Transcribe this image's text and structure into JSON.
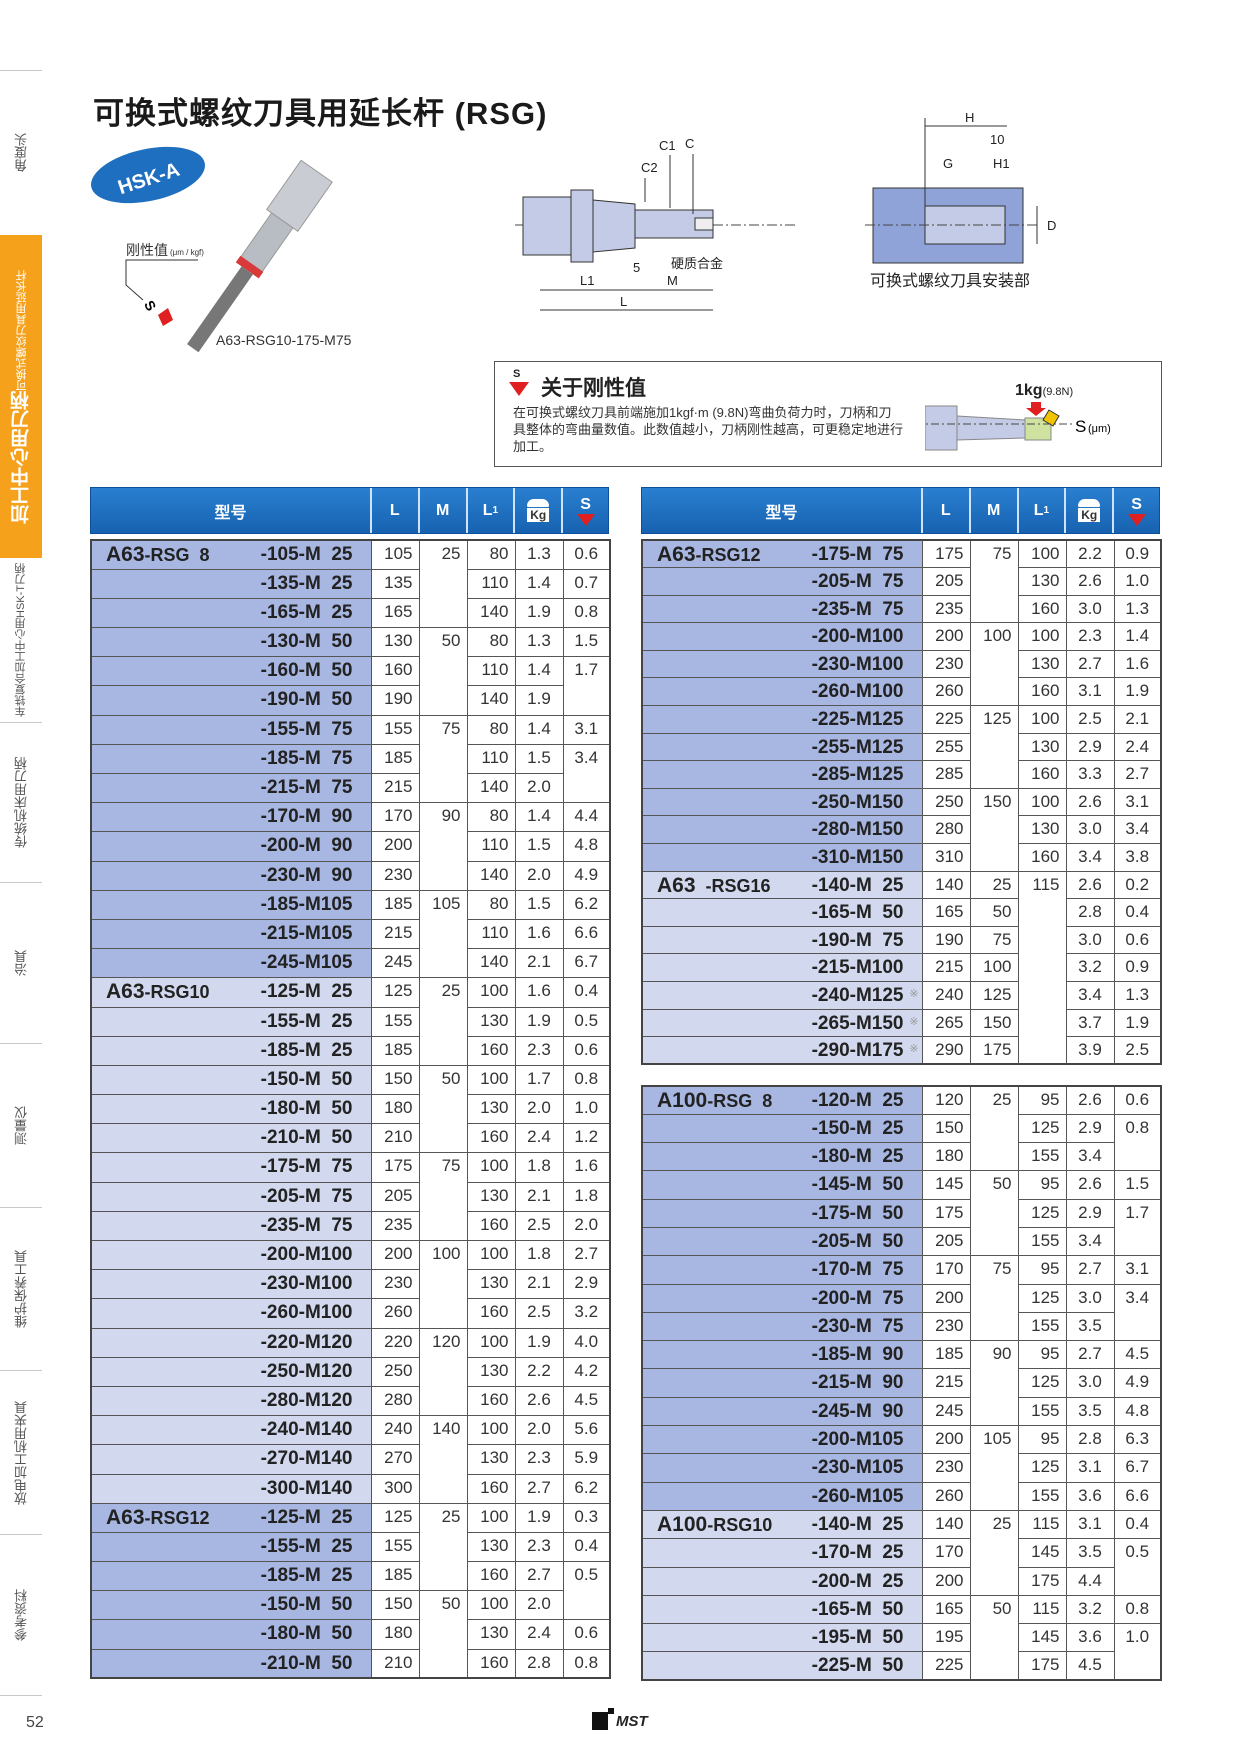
{
  "title": "可换式螺纹刀具用延长杆 (RSG)",
  "sidebar": {
    "items": [
      "角度头",
      "车铣复合加工中心用HSK-T刀柄",
      "传统机床用刀柄",
      "治具",
      "测量仪",
      "维护保养工具",
      "放电加工机用夹具",
      "参考资料"
    ],
    "active": {
      "main": "加工中心用刀柄",
      "sub": "可换式螺纹刀具用延长杆"
    },
    "accent": "#f5a11c"
  },
  "page_number": "52",
  "logo_text": "MST",
  "product": {
    "badge": "HSK-A",
    "rigidity_label": "刚性值",
    "rigidity_unit": "(μm / kgf)",
    "s_mark": "S",
    "model_caption": "A63-RSG10-175-M75"
  },
  "diagram": {
    "c1": "C1",
    "c2": "C2",
    "c": "C",
    "five": "5",
    "carbide": "硬质合金",
    "l1": "L1",
    "m": "M",
    "l": "L"
  },
  "mount_diagram": {
    "h": "H",
    "ten": "10",
    "g": "G",
    "h1": "H1",
    "d": "D",
    "caption": "可换式螺纹刀具安装部"
  },
  "rigidity_box": {
    "s_mark": "S",
    "heading": "关于刚性值",
    "body": "在可换式螺纹刀具前端施加1kgf·m (9.8N)弯曲负荷力时，刀柄和刀具整体的弯曲量数值。此数值越小，刀柄刚性越高，可更稳定地进行加工。",
    "load": "1kg",
    "load_n": "(9.8N)",
    "s_label": "S",
    "s_unit": "(μm)"
  },
  "header": {
    "model": "型号",
    "L": "L",
    "M": "M",
    "L1": "L",
    "L1_sub": "1",
    "kg": "Kg",
    "S": "S",
    "header_color": "#1f6fc0",
    "dark_row": "#a8b7e1",
    "light_row": "#d2d9ef"
  },
  "tables": {
    "left": [
      {
        "groups": [
          {
            "prefix": "A63",
            "series": "-RSG  8",
            "rows": [
              {
                "code": "-105-M  25",
                "L": "105",
                "M": "25",
                "L1": "80",
                "kg": "1.3",
                "S": "0.6"
              },
              {
                "code": "-135-M  25",
                "L": "135",
                "M": null,
                "L1": "110",
                "kg": "1.4",
                "S": "0.7"
              },
              {
                "code": "-165-M  25",
                "L": "165",
                "M": null,
                "L1": "140",
                "kg": "1.9",
                "S": "0.8"
              },
              {
                "code": "-130-M  50",
                "L": "130",
                "M": "50",
                "L1": "80",
                "kg": "1.3",
                "S": "1.5"
              },
              {
                "code": "-160-M  50",
                "L": "160",
                "M": null,
                "L1": "110",
                "kg": "1.4",
                "S": "1.7"
              },
              {
                "code": "-190-M  50",
                "L": "190",
                "M": null,
                "L1": "140",
                "kg": "1.9",
                "S": null
              },
              {
                "code": "-155-M  75",
                "L": "155",
                "M": "75",
                "L1": "80",
                "kg": "1.4",
                "S": "3.1"
              },
              {
                "code": "-185-M  75",
                "L": "185",
                "M": null,
                "L1": "110",
                "kg": "1.5",
                "S": "3.4"
              },
              {
                "code": "-215-M  75",
                "L": "215",
                "M": null,
                "L1": "140",
                "kg": "2.0",
                "S": null
              },
              {
                "code": "-170-M  90",
                "L": "170",
                "M": "90",
                "L1": "80",
                "kg": "1.4",
                "S": "4.4"
              },
              {
                "code": "-200-M  90",
                "L": "200",
                "M": null,
                "L1": "110",
                "kg": "1.5",
                "S": "4.8"
              },
              {
                "code": "-230-M  90",
                "L": "230",
                "M": null,
                "L1": "140",
                "kg": "2.0",
                "S": "4.9"
              },
              {
                "code": "-185-M105",
                "L": "185",
                "M": "105",
                "L1": "80",
                "kg": "1.5",
                "S": "6.2"
              },
              {
                "code": "-215-M105",
                "L": "215",
                "M": null,
                "L1": "110",
                "kg": "1.6",
                "S": "6.6"
              },
              {
                "code": "-245-M105",
                "L": "245",
                "M": null,
                "L1": "140",
                "kg": "2.1",
                "S": "6.7"
              }
            ]
          },
          {
            "prefix": "A63",
            "series": "-RSG10",
            "rows": [
              {
                "code": "-125-M  25",
                "L": "125",
                "M": "25",
                "L1": "100",
                "kg": "1.6",
                "S": "0.4"
              },
              {
                "code": "-155-M  25",
                "L": "155",
                "M": null,
                "L1": "130",
                "kg": "1.9",
                "S": "0.5"
              },
              {
                "code": "-185-M  25",
                "L": "185",
                "M": null,
                "L1": "160",
                "kg": "2.3",
                "S": "0.6"
              },
              {
                "code": "-150-M  50",
                "L": "150",
                "M": "50",
                "L1": "100",
                "kg": "1.7",
                "S": "0.8"
              },
              {
                "code": "-180-M  50",
                "L": "180",
                "M": null,
                "L1": "130",
                "kg": "2.0",
                "S": "1.0"
              },
              {
                "code": "-210-M  50",
                "L": "210",
                "M": null,
                "L1": "160",
                "kg": "2.4",
                "S": "1.2"
              },
              {
                "code": "-175-M  75",
                "L": "175",
                "M": "75",
                "L1": "100",
                "kg": "1.8",
                "S": "1.6"
              },
              {
                "code": "-205-M  75",
                "L": "205",
                "M": null,
                "L1": "130",
                "kg": "2.1",
                "S": "1.8"
              },
              {
                "code": "-235-M  75",
                "L": "235",
                "M": null,
                "L1": "160",
                "kg": "2.5",
                "S": "2.0"
              },
              {
                "code": "-200-M100",
                "L": "200",
                "M": "100",
                "L1": "100",
                "kg": "1.8",
                "S": "2.7"
              },
              {
                "code": "-230-M100",
                "L": "230",
                "M": null,
                "L1": "130",
                "kg": "2.1",
                "S": "2.9"
              },
              {
                "code": "-260-M100",
                "L": "260",
                "M": null,
                "L1": "160",
                "kg": "2.5",
                "S": "3.2"
              },
              {
                "code": "-220-M120",
                "L": "220",
                "M": "120",
                "L1": "100",
                "kg": "1.9",
                "S": "4.0"
              },
              {
                "code": "-250-M120",
                "L": "250",
                "M": null,
                "L1": "130",
                "kg": "2.2",
                "S": "4.2"
              },
              {
                "code": "-280-M120",
                "L": "280",
                "M": null,
                "L1": "160",
                "kg": "2.6",
                "S": "4.5"
              },
              {
                "code": "-240-M140",
                "L": "240",
                "M": "140",
                "L1": "100",
                "kg": "2.0",
                "S": "5.6"
              },
              {
                "code": "-270-M140",
                "L": "270",
                "M": null,
                "L1": "130",
                "kg": "2.3",
                "S": "5.9"
              },
              {
                "code": "-300-M140",
                "L": "300",
                "M": null,
                "L1": "160",
                "kg": "2.7",
                "S": "6.2"
              }
            ]
          },
          {
            "prefix": "A63",
            "series": "-RSG12",
            "rows": [
              {
                "code": "-125-M  25",
                "L": "125",
                "M": "25",
                "L1": "100",
                "kg": "1.9",
                "S": "0.3"
              },
              {
                "code": "-155-M  25",
                "L": "155",
                "M": null,
                "L1": "130",
                "kg": "2.3",
                "S": "0.4"
              },
              {
                "code": "-185-M  25",
                "L": "185",
                "M": null,
                "L1": "160",
                "kg": "2.7",
                "S": "0.5"
              },
              {
                "code": "-150-M  50",
                "L": "150",
                "M": "50",
                "L1": "100",
                "kg": "2.0",
                "S": null
              },
              {
                "code": "-180-M  50",
                "L": "180",
                "M": null,
                "L1": "130",
                "kg": "2.4",
                "S": "0.6"
              },
              {
                "code": "-210-M  50",
                "L": "210",
                "M": null,
                "L1": "160",
                "kg": "2.8",
                "S": "0.8"
              }
            ]
          }
        ]
      }
    ],
    "right": [
      {
        "groups": [
          {
            "prefix": "A63",
            "series": "-RSG12",
            "rows": [
              {
                "code": "-175-M  75",
                "L": "175",
                "M": "75",
                "L1": "100",
                "kg": "2.2",
                "S": "0.9"
              },
              {
                "code": "-205-M  75",
                "L": "205",
                "M": null,
                "L1": "130",
                "kg": "2.6",
                "S": "1.0"
              },
              {
                "code": "-235-M  75",
                "L": "235",
                "M": null,
                "L1": "160",
                "kg": "3.0",
                "S": "1.3"
              },
              {
                "code": "-200-M100",
                "L": "200",
                "M": "100",
                "L1": "100",
                "kg": "2.3",
                "S": "1.4"
              },
              {
                "code": "-230-M100",
                "L": "230",
                "M": null,
                "L1": "130",
                "kg": "2.7",
                "S": "1.6"
              },
              {
                "code": "-260-M100",
                "L": "260",
                "M": null,
                "L1": "160",
                "kg": "3.1",
                "S": "1.9"
              },
              {
                "code": "-225-M125",
                "L": "225",
                "M": "125",
                "L1": "100",
                "kg": "2.5",
                "S": "2.1"
              },
              {
                "code": "-255-M125",
                "L": "255",
                "M": null,
                "L1": "130",
                "kg": "2.9",
                "S": "2.4"
              },
              {
                "code": "-285-M125",
                "L": "285",
                "M": null,
                "L1": "160",
                "kg": "3.3",
                "S": "2.7"
              },
              {
                "code": "-250-M150",
                "L": "250",
                "M": "150",
                "L1": "100",
                "kg": "2.6",
                "S": "3.1"
              },
              {
                "code": "-280-M150",
                "L": "280",
                "M": null,
                "L1": "130",
                "kg": "3.0",
                "S": "3.4"
              },
              {
                "code": "-310-M150",
                "L": "310",
                "M": null,
                "L1": "160",
                "kg": "3.4",
                "S": "3.8"
              }
            ]
          },
          {
            "prefix": "A63",
            "series": "  -RSG16",
            "rows": [
              {
                "code": "-140-M  25",
                "L": "140",
                "M": "25",
                "L1": "115",
                "kg": "2.6",
                "S": "0.2"
              },
              {
                "code": "-165-M  50",
                "L": "165",
                "M": "50",
                "L1": null,
                "kg": "2.8",
                "S": "0.4"
              },
              {
                "code": "-190-M  75",
                "L": "190",
                "M": "75",
                "L1": null,
                "kg": "3.0",
                "S": "0.6"
              },
              {
                "code": "-215-M100",
                "L": "215",
                "M": "100",
                "L1": null,
                "kg": "3.2",
                "S": "0.9"
              },
              {
                "code": "-240-M125",
                "note": "※",
                "L": "240",
                "M": "125",
                "L1": null,
                "kg": "3.4",
                "S": "1.3"
              },
              {
                "code": "-265-M150",
                "note": "※",
                "L": "265",
                "M": "150",
                "L1": null,
                "kg": "3.7",
                "S": "1.9"
              },
              {
                "code": "-290-M175",
                "note": "※",
                "L": "290",
                "M": "175",
                "L1": null,
                "kg": "3.9",
                "S": "2.5"
              }
            ]
          }
        ]
      },
      {
        "groups": [
          {
            "prefix": "A100",
            "series": "-RSG  8",
            "rows": [
              {
                "code": "-120-M  25",
                "L": "120",
                "M": "25",
                "L1": "95",
                "kg": "2.6",
                "S": "0.6"
              },
              {
                "code": "-150-M  25",
                "L": "150",
                "M": null,
                "L1": "125",
                "kg": "2.9",
                "S": "0.8"
              },
              {
                "code": "-180-M  25",
                "L": "180",
                "M": null,
                "L1": "155",
                "kg": "3.4",
                "S": null
              },
              {
                "code": "-145-M  50",
                "L": "145",
                "M": "50",
                "L1": "95",
                "kg": "2.6",
                "S": "1.5"
              },
              {
                "code": "-175-M  50",
                "L": "175",
                "M": null,
                "L1": "125",
                "kg": "2.9",
                "S": "1.7"
              },
              {
                "code": "-205-M  50",
                "L": "205",
                "M": null,
                "L1": "155",
                "kg": "3.4",
                "S": null
              },
              {
                "code": "-170-M  75",
                "L": "170",
                "M": "75",
                "L1": "95",
                "kg": "2.7",
                "S": "3.1"
              },
              {
                "code": "-200-M  75",
                "L": "200",
                "M": null,
                "L1": "125",
                "kg": "3.0",
                "S": "3.4"
              },
              {
                "code": "-230-M  75",
                "L": "230",
                "M": null,
                "L1": "155",
                "kg": "3.5",
                "S": null
              },
              {
                "code": "-185-M  90",
                "L": "185",
                "M": "90",
                "L1": "95",
                "kg": "2.7",
                "S": "4.5"
              },
              {
                "code": "-215-M  90",
                "L": "215",
                "M": null,
                "L1": "125",
                "kg": "3.0",
                "S": "4.9"
              },
              {
                "code": "-245-M  90",
                "L": "245",
                "M": null,
                "L1": "155",
                "kg": "3.5",
                "S": "4.8"
              },
              {
                "code": "-200-M105",
                "L": "200",
                "M": "105",
                "L1": "95",
                "kg": "2.8",
                "S": "6.3"
              },
              {
                "code": "-230-M105",
                "L": "230",
                "M": null,
                "L1": "125",
                "kg": "3.1",
                "S": "6.7"
              },
              {
                "code": "-260-M105",
                "L": "260",
                "M": null,
                "L1": "155",
                "kg": "3.6",
                "S": "6.6"
              }
            ]
          },
          {
            "prefix": "A100",
            "series": "-RSG10",
            "rows": [
              {
                "code": "-140-M  25",
                "L": "140",
                "M": "25",
                "L1": "115",
                "kg": "3.1",
                "S": "0.4"
              },
              {
                "code": "-170-M  25",
                "L": "170",
                "M": null,
                "L1": "145",
                "kg": "3.5",
                "S": "0.5"
              },
              {
                "code": "-200-M  25",
                "L": "200",
                "M": null,
                "L1": "175",
                "kg": "4.4",
                "S": null
              },
              {
                "code": "-165-M  50",
                "L": "165",
                "M": "50",
                "L1": "115",
                "kg": "3.2",
                "S": "0.8"
              },
              {
                "code": "-195-M  50",
                "L": "195",
                "M": null,
                "L1": "145",
                "kg": "3.6",
                "S": "1.0"
              },
              {
                "code": "-225-M  50",
                "L": "225",
                "M": null,
                "L1": "175",
                "kg": "4.5",
                "S": null
              }
            ]
          }
        ]
      }
    ]
  }
}
